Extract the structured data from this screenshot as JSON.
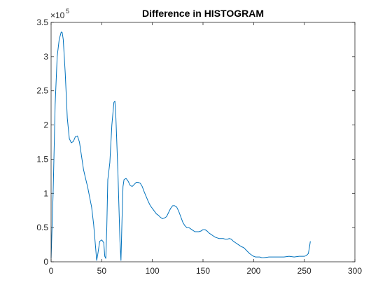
{
  "chart_data": {
    "type": "line",
    "title": "Difference in HISTOGRAM",
    "xlabel": "",
    "ylabel": "",
    "xlim": [
      0,
      300
    ],
    "ylim": [
      0,
      3.5
    ],
    "x_ticks": [
      0,
      50,
      100,
      150,
      200,
      250,
      300
    ],
    "y_ticks": [
      0,
      0.5,
      1,
      1.5,
      2,
      2.5,
      3,
      3.5
    ],
    "y_tick_labels": [
      "0",
      "0.5",
      "1",
      "1.5",
      "2",
      "2.5",
      "3",
      "3.5"
    ],
    "y_exponent_base": "×10",
    "y_exponent_power": "5",
    "grid": false,
    "box": true,
    "series": [
      {
        "color": "#0072BD",
        "x": [
          0,
          2,
          4,
          6,
          8,
          10,
          11,
          12,
          14,
          16,
          18,
          20,
          22,
          24,
          26,
          28,
          30,
          32,
          34,
          36,
          38,
          40,
          42,
          44,
          45,
          46,
          48,
          50,
          52,
          53,
          54,
          55,
          56,
          58,
          60,
          62,
          63,
          64,
          66,
          68,
          69,
          70,
          71,
          72,
          74,
          76,
          78,
          80,
          82,
          84,
          86,
          88,
          90,
          92,
          94,
          96,
          98,
          100,
          102,
          104,
          106,
          108,
          110,
          112,
          114,
          116,
          118,
          120,
          122,
          124,
          126,
          128,
          130,
          132,
          134,
          136,
          138,
          140,
          142,
          144,
          146,
          148,
          150,
          152,
          154,
          156,
          158,
          160,
          162,
          164,
          166,
          168,
          170,
          172,
          174,
          176,
          178,
          180,
          182,
          184,
          186,
          188,
          190,
          192,
          194,
          196,
          198,
          200,
          202,
          204,
          206,
          208,
          210,
          215,
          220,
          225,
          230,
          235,
          240,
          245,
          250,
          252,
          254,
          255,
          256
        ],
        "y": [
          0.05,
          1.0,
          2.3,
          3.0,
          3.25,
          3.36,
          3.35,
          3.25,
          2.75,
          2.1,
          1.8,
          1.74,
          1.76,
          1.83,
          1.84,
          1.75,
          1.55,
          1.35,
          1.22,
          1.1,
          0.95,
          0.8,
          0.55,
          0.2,
          0.02,
          0.1,
          0.3,
          0.32,
          0.28,
          0.08,
          0.05,
          0.5,
          1.2,
          1.45,
          2.0,
          2.33,
          2.35,
          2.1,
          1.3,
          0.3,
          0.02,
          0.6,
          1.1,
          1.2,
          1.22,
          1.18,
          1.12,
          1.1,
          1.13,
          1.16,
          1.16,
          1.15,
          1.1,
          1.02,
          0.95,
          0.88,
          0.82,
          0.78,
          0.74,
          0.7,
          0.68,
          0.65,
          0.63,
          0.64,
          0.66,
          0.72,
          0.78,
          0.82,
          0.82,
          0.8,
          0.74,
          0.66,
          0.58,
          0.53,
          0.5,
          0.5,
          0.48,
          0.46,
          0.44,
          0.44,
          0.44,
          0.45,
          0.47,
          0.47,
          0.45,
          0.42,
          0.4,
          0.38,
          0.36,
          0.35,
          0.34,
          0.34,
          0.34,
          0.33,
          0.33,
          0.34,
          0.33,
          0.3,
          0.28,
          0.26,
          0.24,
          0.22,
          0.21,
          0.18,
          0.15,
          0.12,
          0.1,
          0.08,
          0.07,
          0.07,
          0.07,
          0.06,
          0.06,
          0.07,
          0.07,
          0.07,
          0.07,
          0.08,
          0.07,
          0.08,
          0.08,
          0.09,
          0.12,
          0.2,
          0.3
        ]
      }
    ]
  }
}
